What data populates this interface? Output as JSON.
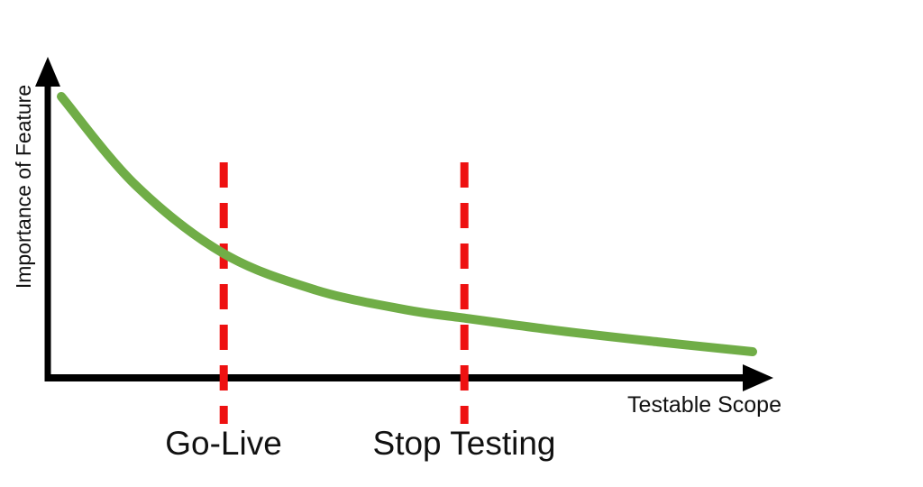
{
  "canvas": {
    "background": "#FFFFFF"
  },
  "axes": {
    "y_label": "Importance of Feature",
    "x_label": "Testable Scope",
    "color": "#000000"
  },
  "annotations": [
    {
      "label": "Go-Live"
    },
    {
      "label": "Stop Testing"
    }
  ],
  "chart_data": {
    "type": "line",
    "title": "",
    "xlabel": "Testable Scope",
    "ylabel": "Importance of Feature",
    "x_axis": {
      "ticks": [],
      "range_normalized": [
        0,
        1
      ]
    },
    "y_axis": {
      "ticks": [],
      "range_normalized": [
        0,
        1
      ]
    },
    "grid": false,
    "legend": false,
    "series": [
      {
        "name": "feature-importance",
        "shape": "exponential-decay",
        "color": "#70AD47",
        "stroke_width": 10,
        "x_normalized": [
          0,
          0.107,
          0.235,
          0.368,
          0.498,
          0.583,
          0.72,
          0.863,
          1.0
        ],
        "y_normalized": [
          1.0,
          0.685,
          0.44,
          0.31,
          0.24,
          0.21,
          0.165,
          0.125,
          0.09
        ]
      }
    ],
    "vlines": [
      {
        "label": "Go-Live",
        "x_normalized": 0.235,
        "color": "#EE1111",
        "style": "dashed"
      },
      {
        "label": "Stop Testing",
        "x_normalized": 0.583,
        "color": "#EE1111",
        "style": "dashed"
      }
    ]
  }
}
